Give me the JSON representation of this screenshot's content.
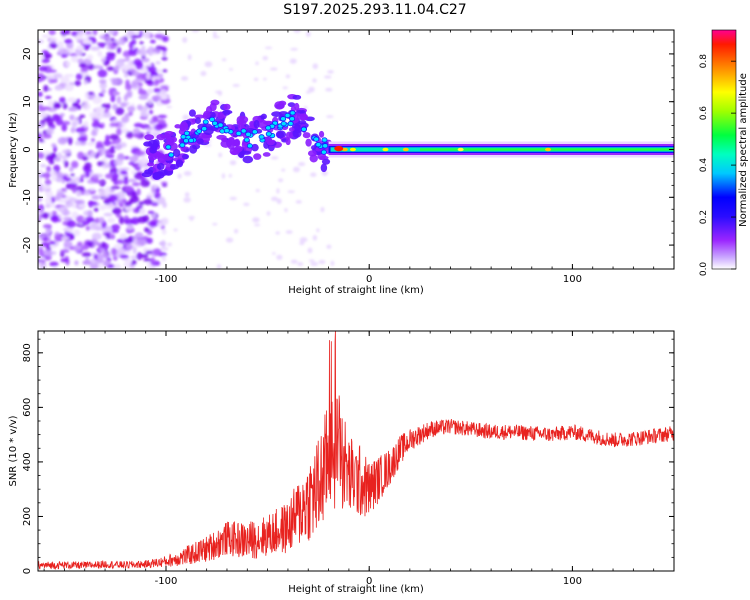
{
  "title": "S197.2025.293.11.04.C27",
  "colors": {
    "snr_line": "#e8221f",
    "colormap": [
      "#ffffff",
      "#9b26ff",
      "#5a14ff",
      "#0000ff",
      "#00e8ff",
      "#00ff40",
      "#ffff00",
      "#ff8000",
      "#ff0000"
    ]
  },
  "chart_data": [
    {
      "type": "heatmap",
      "title": "S197.2025.293.11.04.C27",
      "xlabel": "Height of straight line (km)",
      "ylabel": "Frequency (Hz)",
      "xlim": [
        -163,
        150
      ],
      "ylim": [
        -25,
        25
      ],
      "xticks": [
        -100,
        0,
        100
      ],
      "yticks": [
        -20,
        -10,
        0,
        10,
        20
      ],
      "colorbar": {
        "label": "Normalized spectral amplitude",
        "range": [
          0.0,
          0.92
        ],
        "ticks": [
          0.0,
          0.2,
          0.4,
          0.6,
          0.8
        ]
      },
      "features": {
        "noise_region_x": [
          -163,
          -108
        ],
        "drifting_signal": [
          [
            -110,
            -2
          ],
          [
            -100,
            -1
          ],
          [
            -90,
            2
          ],
          [
            -80,
            6
          ],
          [
            -70,
            5
          ],
          [
            -60,
            2
          ],
          [
            -50,
            3
          ],
          [
            -40,
            6
          ],
          [
            -35,
            8
          ],
          [
            -28,
            2
          ],
          [
            -20,
            0
          ]
        ],
        "steady_line": {
          "x_range": [
            -20,
            150
          ],
          "frequency": 0,
          "amplitude": 0.45,
          "peak_x": -15,
          "peak_amplitude": 0.9
        }
      }
    },
    {
      "type": "line",
      "xlabel": "Height of straight line (km)",
      "ylabel": "SNR (10 * v/v)",
      "xlim": [
        -163,
        150
      ],
      "ylim": [
        0,
        880
      ],
      "xticks": [
        -100,
        0,
        100
      ],
      "yticks": [
        0,
        200,
        400,
        600,
        800
      ],
      "series": [
        {
          "name": "SNR",
          "x": [
            -163,
            -150,
            -140,
            -130,
            -120,
            -110,
            -100,
            -90,
            -80,
            -70,
            -60,
            -50,
            -40,
            -30,
            -25,
            -20,
            -15,
            -10,
            -5,
            0,
            5,
            10,
            15,
            20,
            30,
            40,
            50,
            60,
            70,
            80,
            90,
            100,
            110,
            120,
            130,
            140,
            150
          ],
          "values": [
            20,
            22,
            20,
            25,
            22,
            25,
            35,
            55,
            80,
            120,
            110,
            130,
            160,
            260,
            300,
            420,
            450,
            350,
            330,
            300,
            340,
            380,
            440,
            480,
            520,
            530,
            520,
            510,
            510,
            505,
            500,
            510,
            495,
            480,
            485,
            495,
            505
          ],
          "spread": [
            20,
            20,
            20,
            20,
            20,
            20,
            30,
            50,
            70,
            90,
            100,
            110,
            140,
            220,
            280,
            300,
            320,
            220,
            200,
            150,
            120,
            100,
            80,
            60,
            45,
            40,
            40,
            40,
            40,
            40,
            40,
            40,
            40,
            40,
            40,
            40,
            40
          ]
        }
      ]
    }
  ]
}
